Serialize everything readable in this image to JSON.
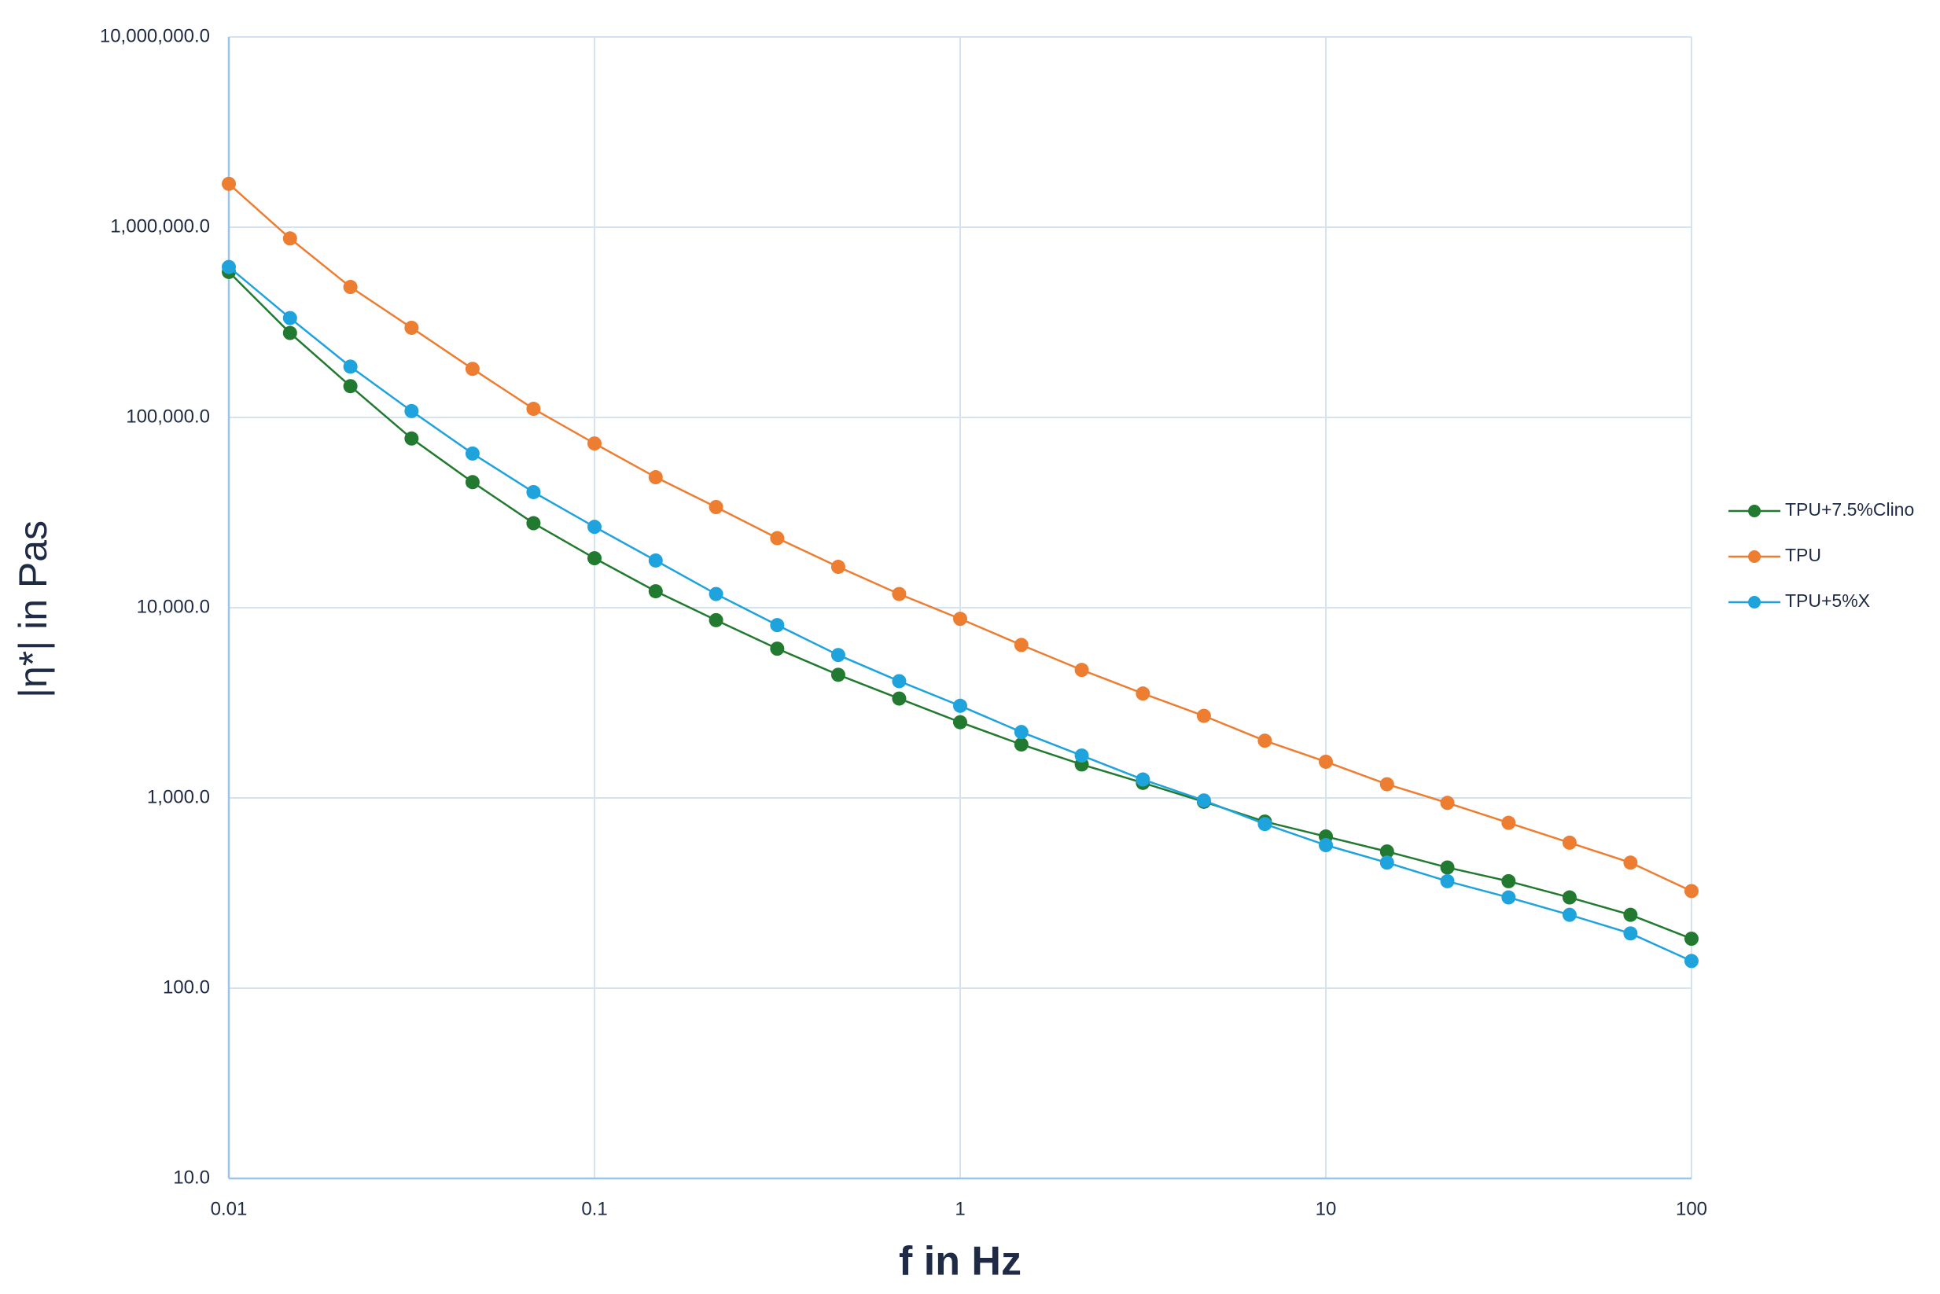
{
  "chart_data": {
    "type": "line",
    "x_label": "f in Hz",
    "y_label": "|η*| in Pas",
    "x": [
      0.01,
      0.0147,
      0.0215,
      0.0316,
      0.0464,
      0.0681,
      0.1,
      0.147,
      0.215,
      0.316,
      0.464,
      0.681,
      1,
      1.47,
      2.15,
      3.16,
      4.64,
      6.81,
      10,
      14.7,
      21.5,
      31.6,
      46.4,
      68.1,
      100
    ],
    "series": [
      {
        "name": "TPU+7.5%Clino",
        "color": "#217a2f",
        "values": [
          582000,
          278000,
          146000,
          77500,
          45700,
          27800,
          18200,
          12200,
          8600,
          6090,
          4440,
          3330,
          2500,
          1910,
          1500,
          1200,
          955,
          751,
          627,
          523,
          431,
          365,
          300,
          243,
          182
        ]
      },
      {
        "name": "TPU",
        "color": "#ed7d31",
        "values": [
          1690000,
          873000,
          485000,
          296000,
          180000,
          111000,
          73000,
          48500,
          33800,
          23200,
          16400,
          11800,
          8740,
          6370,
          4710,
          3540,
          2700,
          2000,
          1550,
          1180,
          942,
          740,
          582,
          457,
          324
        ]
      },
      {
        "name": "TPU+5%X",
        "color": "#1fa3dc",
        "values": [
          618000,
          333000,
          185000,
          108000,
          64600,
          40500,
          26600,
          17700,
          11800,
          8100,
          5640,
          4110,
          3050,
          2220,
          1670,
          1250,
          970,
          729,
          565,
          457,
          365,
          300,
          243,
          194,
          139
        ]
      }
    ],
    "xlim": [
      0.01,
      100
    ],
    "xticks": [
      0.01,
      0.1,
      1,
      10,
      100
    ],
    "ylim": [
      10,
      10000000
    ],
    "yticks": [
      {
        "value": 10,
        "label": "10.0"
      },
      {
        "value": 100,
        "label": "100.0"
      },
      {
        "value": 1000,
        "label": "1,000.0"
      },
      {
        "value": 10000,
        "label": "10,000.0"
      },
      {
        "value": 100000,
        "label": "100,000.0"
      },
      {
        "value": 1000000,
        "label": "1,000,000.0"
      },
      {
        "value": 10000000,
        "label": "10,000,000.0"
      }
    ],
    "x_log": true,
    "y_log": true,
    "grid": true,
    "legend": "right"
  }
}
